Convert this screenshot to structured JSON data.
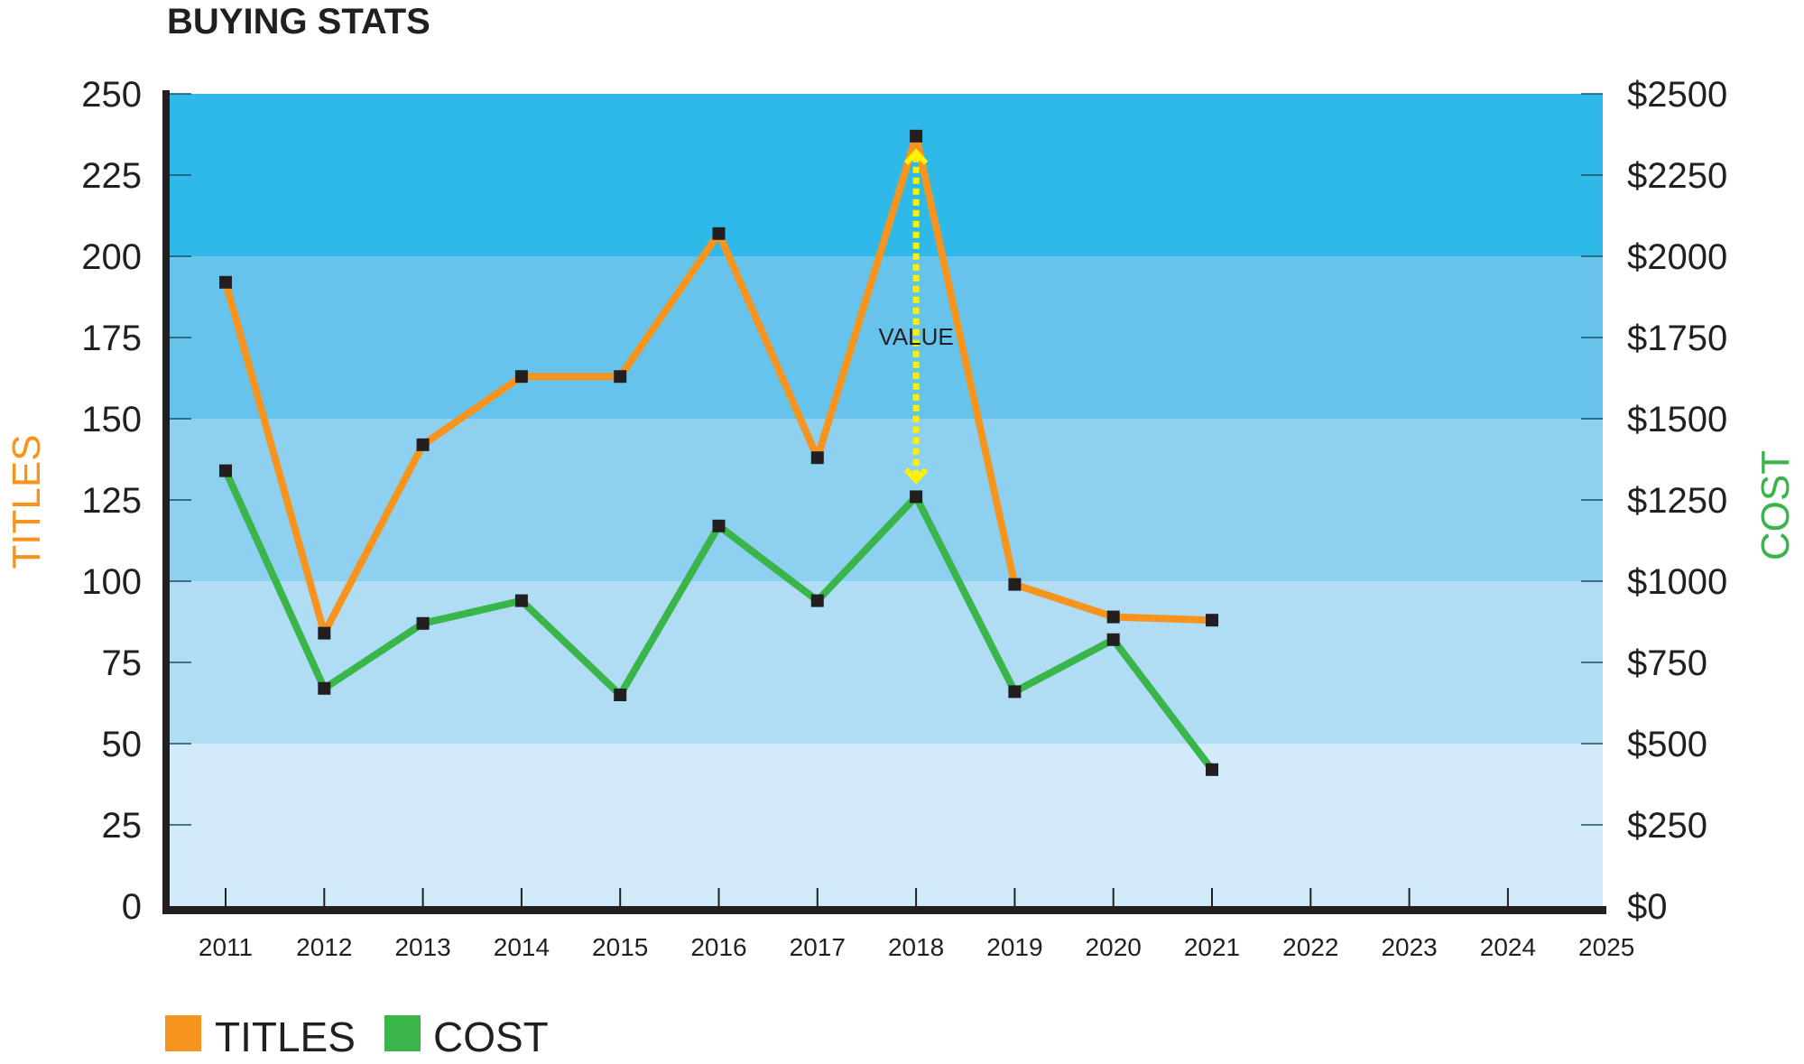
{
  "chart_data": {
    "type": "line",
    "title": "BUYING STATS",
    "xlabel": "",
    "ylabel": "TITLES",
    "y2label": "COST",
    "categories": [
      "2011",
      "2012",
      "2013",
      "2014",
      "2015",
      "2016",
      "2017",
      "2018",
      "2019",
      "2020",
      "2021",
      "2022",
      "2023",
      "2024",
      "2025"
    ],
    "series": [
      {
        "name": "TITLES",
        "axis": "left",
        "color": "#f7941d",
        "values": [
          192,
          84,
          142,
          163,
          163,
          207,
          138,
          237,
          99,
          89,
          88
        ]
      },
      {
        "name": "COST",
        "axis": "right",
        "color": "#39b54a",
        "values": [
          1340,
          670,
          870,
          940,
          650,
          1170,
          940,
          1260,
          660,
          820,
          420
        ]
      }
    ],
    "ylim": [
      0,
      250
    ],
    "y2lim": [
      0,
      2500
    ],
    "yticks": [
      "0",
      "25",
      "50",
      "75",
      "100",
      "125",
      "150",
      "175",
      "200",
      "225",
      "250"
    ],
    "y2ticks": [
      "$0",
      "$250",
      "$500",
      "$750",
      "$1000",
      "$1250",
      "$1500",
      "$1750",
      "$2000",
      "$2250",
      "$2500"
    ],
    "highlight_category": "2021",
    "future_categories": [
      "2022",
      "2023",
      "2024",
      "2025"
    ],
    "annotations": [
      {
        "text": "VALUE",
        "category": "2018",
        "from_series": "TITLES",
        "to_series": "COST"
      }
    ],
    "legend_position": "bottom-left",
    "grid": false,
    "background_bands": [
      {
        "from": 0,
        "to": 50,
        "color": "#d1ebfb"
      },
      {
        "from": 50,
        "to": 100,
        "color": "#b0ddf4"
      },
      {
        "from": 100,
        "to": 150,
        "color": "#8dd0f0"
      },
      {
        "from": 150,
        "to": 200,
        "color": "#66c4ec"
      },
      {
        "from": 200,
        "to": 250,
        "color": "#2fb9e8"
      }
    ]
  },
  "colors": {
    "titles": "#f7941d",
    "cost": "#39b54a",
    "axis": "#231f20",
    "highlight_year": "#d42a2f",
    "future_year": "#bcbec0",
    "annotation_arrow": "#fff200"
  },
  "legend": [
    {
      "label": "TITLES",
      "color": "#f7941d"
    },
    {
      "label": "COST",
      "color": "#39b54a"
    }
  ]
}
